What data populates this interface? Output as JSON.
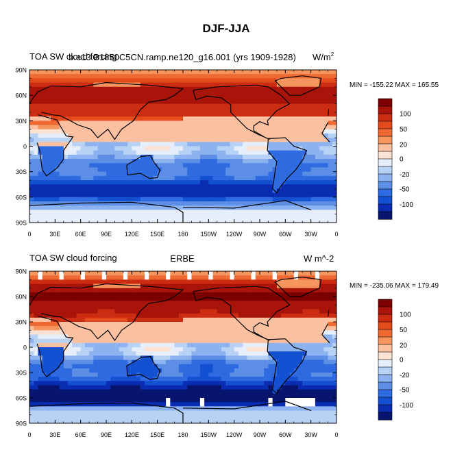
{
  "title": "DJF-JJA",
  "colors": [
    "#08156e",
    "#0a2cb0",
    "#1450d2",
    "#2f6be0",
    "#5d8ee6",
    "#8cb2f0",
    "#b8d2f6",
    "#e6eefb",
    "#fbe2d2",
    "#fac0a0",
    "#f6955e",
    "#ef6a32",
    "#e34a1c",
    "#cc2c12",
    "#a8140a",
    "#7d0000"
  ],
  "chart_data": [
    {
      "type": "heatmap",
      "left_title": "TOA SW cloud forcing",
      "center_title": "b.e13.B1850C5CN.ramp.ne120_g16.001 (yrs 1909-1928)",
      "units_text": "W/m",
      "units_sup": "2",
      "min_max": "MIN = -155.22 MAX = 165.55",
      "y_ticks": [
        "90N",
        "60N",
        "30N",
        "0",
        "30S",
        "60S",
        "90S"
      ],
      "x_ticks": [
        "0",
        "30E",
        "60E",
        "90E",
        "120E",
        "150E",
        "180",
        "150W",
        "120W",
        "90W",
        "60W",
        "30W",
        "0"
      ],
      "colorbar_labels": [
        "100",
        "50",
        "20",
        "0",
        "-20",
        "-50",
        "-100"
      ],
      "levels": [
        -120,
        -100,
        -80,
        -65,
        -50,
        -35,
        -20,
        -10,
        0,
        10,
        20,
        35,
        50,
        65,
        80,
        100,
        120
      ]
    },
    {
      "type": "heatmap",
      "left_title": "TOA SW cloud forcing",
      "center_title": "ERBE",
      "units_text": "W m^-2",
      "units_sup": "",
      "min_max": "MIN = -235.06 MAX = 179.49",
      "y_ticks": [
        "90N",
        "60N",
        "30N",
        "0",
        "30S",
        "60S",
        "90S"
      ],
      "x_ticks": [
        "0",
        "30E",
        "60E",
        "90E",
        "120E",
        "150E",
        "180",
        "150W",
        "120W",
        "90W",
        "60W",
        "30W",
        "0"
      ],
      "colorbar_labels": [
        "100",
        "50",
        "20",
        "0",
        "-20",
        "-50",
        "-100"
      ],
      "levels": [
        -120,
        -100,
        -80,
        -65,
        -50,
        -35,
        -20,
        -10,
        0,
        10,
        20,
        35,
        50,
        65,
        80,
        100,
        120
      ]
    }
  ]
}
